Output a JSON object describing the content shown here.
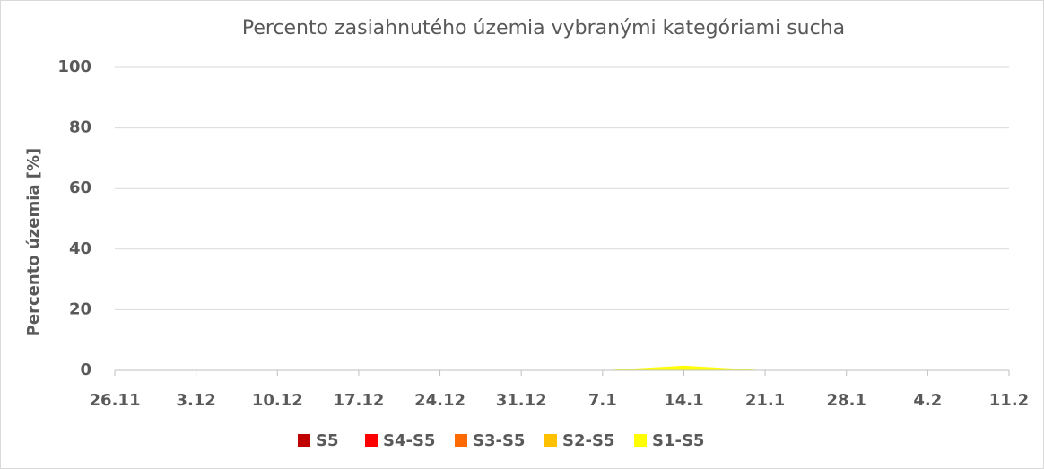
{
  "chart_data": {
    "type": "area",
    "title": "Percento zasiahnutého územia vybranými kategóriami sucha",
    "y_label": "Percento územia  [%]",
    "categories": [
      "26.11",
      "3.12",
      "10.12",
      "17.12",
      "24.12",
      "31.12",
      "7.1",
      "14.1",
      "21.1",
      "28.1",
      "4.2",
      "11.2"
    ],
    "series": [
      {
        "name": "S5",
        "color": "#c00000",
        "values": [
          0,
          0,
          0,
          0,
          0,
          0,
          0,
          0,
          0,
          0,
          0,
          0
        ]
      },
      {
        "name": "S4-S5",
        "color": "#ff0000",
        "values": [
          0,
          0,
          0,
          0,
          0,
          0,
          0,
          0,
          0,
          0,
          0,
          0
        ]
      },
      {
        "name": "S3-S5",
        "color": "#ff6a00",
        "values": [
          0,
          0,
          0,
          0,
          0,
          0,
          0,
          0,
          0,
          0,
          0,
          0
        ]
      },
      {
        "name": "S2-S5",
        "color": "#ffc000",
        "values": [
          0,
          0,
          0,
          0,
          0,
          0,
          0,
          0,
          0,
          0,
          0,
          0
        ]
      },
      {
        "name": "S1-S5",
        "color": "#ffff00",
        "values": [
          0,
          0,
          0,
          0,
          0,
          0,
          0,
          1.5,
          0,
          0,
          0,
          0
        ]
      }
    ],
    "ylim": [
      0,
      100
    ],
    "yticks": [
      0,
      20,
      40,
      60,
      80,
      100
    ],
    "grid": true,
    "legend": "bottom"
  }
}
